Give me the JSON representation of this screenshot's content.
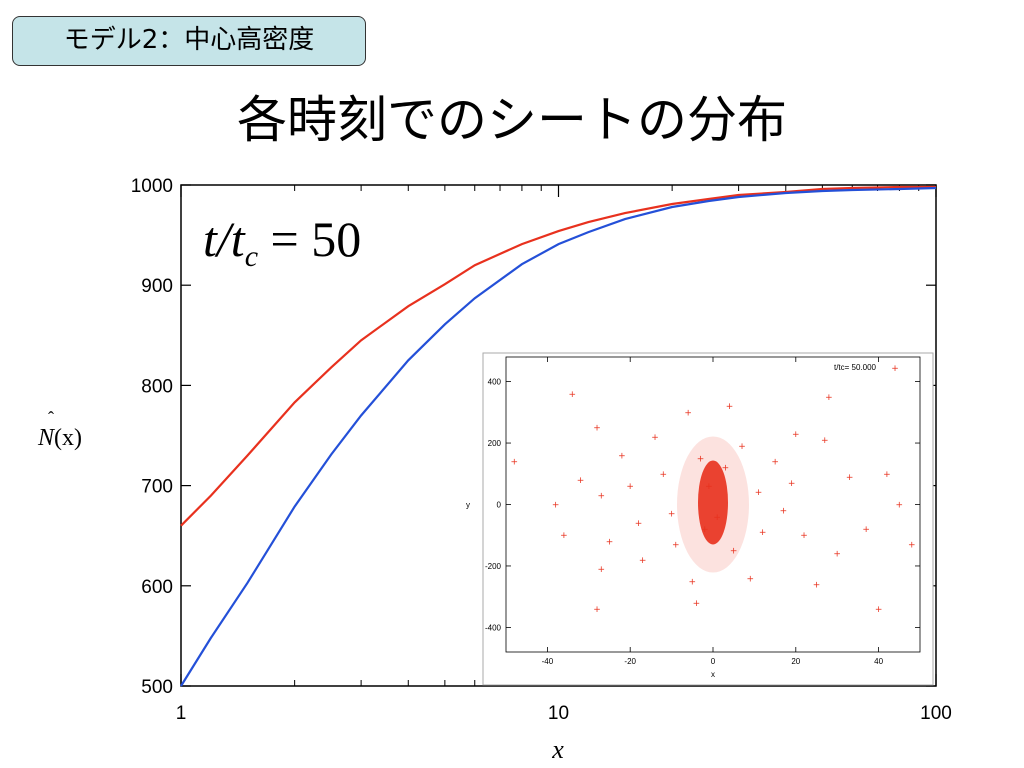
{
  "header": {
    "badge": "モデル2：中心高密度",
    "title": "各時刻でのシートの分布"
  },
  "colors": {
    "red": "#e8311e",
    "blue": "#2450d8"
  },
  "chart_data": [
    {
      "type": "line",
      "title": "",
      "annotation": {
        "var": "t",
        "sub": "c",
        "value": "50"
      },
      "xlabel": "x",
      "ylabel": {
        "main": "N",
        "arg": "(x)"
      },
      "xscale": "log",
      "xlim": [
        1,
        100
      ],
      "ylim": [
        500,
        1000
      ],
      "xticks": [
        "1",
        "10",
        "100"
      ],
      "yticks": [
        "500",
        "600",
        "700",
        "800",
        "900",
        "1000"
      ],
      "grid": false,
      "series": [
        {
          "color": "red",
          "x": [
            1,
            1.2,
            1.5,
            2,
            2.5,
            3,
            4,
            5,
            6,
            8,
            10,
            12,
            15,
            20,
            25,
            30,
            40,
            50,
            60,
            80,
            100
          ],
          "y": [
            660,
            690,
            730,
            783,
            818,
            845,
            879,
            901,
            920,
            941,
            954,
            963,
            972,
            981,
            986,
            990,
            993,
            996,
            997,
            998,
            998
          ]
        },
        {
          "color": "blue",
          "x": [
            1,
            1.2,
            1.5,
            2,
            2.5,
            3,
            4,
            5,
            6,
            8,
            10,
            12,
            15,
            20,
            25,
            30,
            40,
            50,
            60,
            80,
            100
          ],
          "y": [
            500,
            548,
            603,
            679,
            731,
            770,
            825,
            861,
            887,
            921,
            941,
            953,
            966,
            978,
            984,
            988,
            992,
            994,
            995,
            996,
            997
          ]
        }
      ]
    },
    {
      "type": "scatter",
      "title": "",
      "legend": "t/tc= 50.000",
      "legend_position": "top-right",
      "xlabel": "x",
      "ylabel": "y",
      "xlim": [
        -50,
        50
      ],
      "ylim": [
        -480,
        480
      ],
      "xticks": [
        "-40",
        "-20",
        "0",
        "20",
        "40"
      ],
      "yticks": [
        "400",
        "200",
        "0",
        "-200",
        "-400"
      ],
      "series": [
        {
          "color": "red",
          "points": [
            [
              -48,
              140
            ],
            [
              -38,
              0
            ],
            [
              -36,
              -100
            ],
            [
              -34,
              360
            ],
            [
              -32,
              80
            ],
            [
              -28,
              250
            ],
            [
              -27,
              30
            ],
            [
              -27,
              -210
            ],
            [
              -28,
              -340
            ],
            [
              -25,
              -120
            ],
            [
              -22,
              160
            ],
            [
              -20,
              60
            ],
            [
              -18,
              -60
            ],
            [
              -17,
              -180
            ],
            [
              -14,
              220
            ],
            [
              -12,
              100
            ],
            [
              -10,
              -30
            ],
            [
              -9,
              -130
            ],
            [
              -6,
              300
            ],
            [
              -5,
              -250
            ],
            [
              -4,
              -320
            ],
            [
              -3,
              150
            ],
            [
              -2,
              -80
            ],
            [
              -1,
              60
            ],
            [
              1,
              -40
            ],
            [
              3,
              120
            ],
            [
              4,
              320
            ],
            [
              5,
              -150
            ],
            [
              7,
              190
            ],
            [
              9,
              -240
            ],
            [
              11,
              40
            ],
            [
              12,
              -90
            ],
            [
              15,
              140
            ],
            [
              17,
              -20
            ],
            [
              19,
              70
            ],
            [
              20,
              230
            ],
            [
              22,
              -100
            ],
            [
              25,
              -260
            ],
            [
              27,
              210
            ],
            [
              28,
              350
            ],
            [
              30,
              -160
            ],
            [
              33,
              90
            ],
            [
              37,
              -80
            ],
            [
              40,
              -340
            ],
            [
              42,
              100
            ],
            [
              45,
              0
            ],
            [
              48,
              -130
            ]
          ]
        }
      ]
    }
  ]
}
